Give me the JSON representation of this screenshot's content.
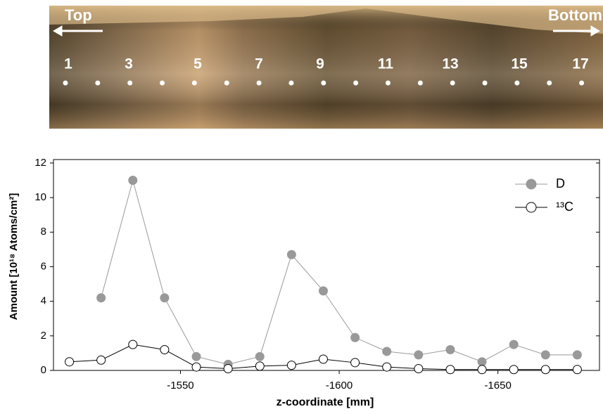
{
  "photo": {
    "left_label": "Top",
    "right_label": "Bottom",
    "position_labels": [
      "1",
      "3",
      "5",
      "7",
      "9",
      "11",
      "13",
      "15",
      "17"
    ]
  },
  "chart_data": {
    "type": "line",
    "x_label": "z-coordinate [mm]",
    "y_label": "Amount [10¹⁸ Atoms/cm²]",
    "x": [
      -1515,
      -1525,
      -1535,
      -1545,
      -1555,
      -1565,
      -1575,
      -1585,
      -1595,
      -1605,
      -1615,
      -1625,
      -1635,
      -1645,
      -1655,
      -1665,
      -1675
    ],
    "series": [
      {
        "name": "D",
        "color": "#999999",
        "marker_fill": "#999999",
        "values": [
          null,
          4.2,
          11.0,
          4.2,
          0.8,
          0.35,
          0.8,
          6.7,
          4.6,
          1.9,
          1.1,
          0.9,
          1.2,
          0.5,
          1.5,
          0.9,
          0.9
        ]
      },
      {
        "name": "¹³C",
        "color": "#000000",
        "marker_fill": "#ffffff",
        "values": [
          0.5,
          0.6,
          1.5,
          1.2,
          0.2,
          0.1,
          0.25,
          0.3,
          0.65,
          0.45,
          0.2,
          0.1,
          0.05,
          0.05,
          0.05,
          0.05,
          0.05
        ]
      }
    ],
    "xlim": [
      -1510,
      -1682
    ],
    "xticks": [
      -1550,
      -1600,
      -1650
    ],
    "ylim": [
      0,
      12.2
    ],
    "yticks": [
      0,
      2,
      4,
      6,
      8,
      10,
      12
    ]
  }
}
